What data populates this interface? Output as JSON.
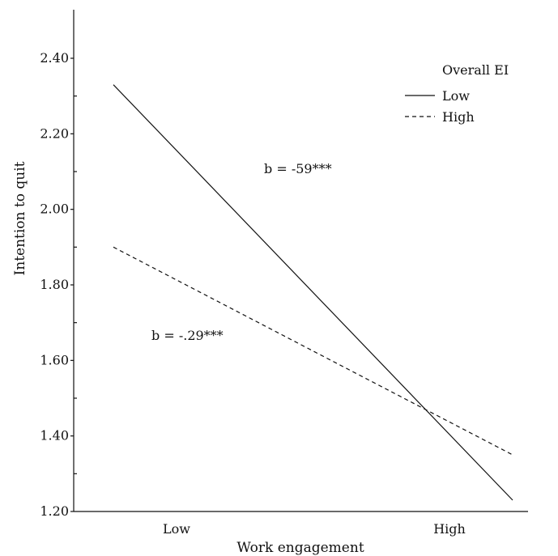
{
  "chart_data": {
    "type": "line",
    "categories": [
      "Low",
      "High"
    ],
    "xlabel": "Work engagement",
    "ylabel": "Intention to quit",
    "ylim": [
      1.2,
      2.5
    ],
    "yticks": [
      "1.20",
      "1.40",
      "1.60",
      "1.80",
      "2.00",
      "2.20",
      "2.40"
    ],
    "legend": {
      "title": "Overall EI",
      "placement": "top-right"
    },
    "series": [
      {
        "name": "Low",
        "style": "solid",
        "values": [
          2.33,
          1.23
        ]
      },
      {
        "name": "High",
        "style": "dashed",
        "values": [
          1.9,
          1.35
        ]
      }
    ],
    "annotations": [
      {
        "text": "b = -59***",
        "series": "Low"
      },
      {
        "text": "b = -.29***",
        "series": "High"
      }
    ]
  }
}
